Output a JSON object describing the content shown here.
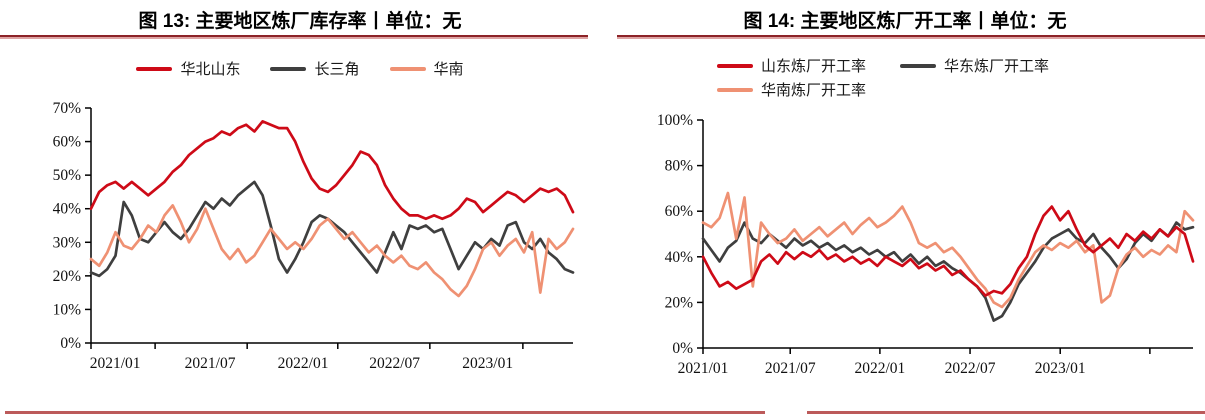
{
  "page": {
    "background": "#ffffff",
    "accent_rule_dark": "#8c2327",
    "accent_rule_light": "#dda3a3",
    "bottom_rule_color": "#bc5a5a"
  },
  "chart_data": [
    {
      "type": "line",
      "title": "图 13: 主要地区炼厂库存率丨单位：无",
      "legend_position": "top-center",
      "grid": false,
      "x_range": [
        "2021/01",
        "2023/06"
      ],
      "x_labels": [
        "2021/01",
        "2021/07",
        "2022/01",
        "2022/07",
        "2023/01"
      ],
      "ylabel": "",
      "ylim": [
        0,
        70
      ],
      "y_step": 10,
      "y_labels": [
        "0%",
        "10%",
        "20%",
        "30%",
        "40%",
        "50%",
        "60%",
        "70%"
      ],
      "series": [
        {
          "name": "华北山东",
          "color": "#ce0a17",
          "values": [
            40,
            45,
            47,
            48,
            46,
            48,
            46,
            44,
            46,
            48,
            51,
            53,
            56,
            58,
            60,
            61,
            63,
            62,
            64,
            65,
            63,
            66,
            65,
            64,
            64,
            60,
            54,
            49,
            46,
            45,
            47,
            50,
            53,
            57,
            56,
            53,
            47,
            43,
            40,
            38,
            38,
            37,
            38,
            37,
            38,
            40,
            43,
            42,
            39,
            41,
            43,
            45,
            44,
            42,
            44,
            46,
            45,
            46,
            44,
            39
          ]
        },
        {
          "name": "长三角",
          "color": "#3f3f3f",
          "values": [
            21,
            20,
            22,
            26,
            42,
            38,
            31,
            30,
            33,
            36,
            33,
            31,
            34,
            38,
            42,
            40,
            43,
            41,
            44,
            46,
            48,
            44,
            35,
            25,
            21,
            25,
            30,
            36,
            38,
            37,
            35,
            33,
            30,
            27,
            24,
            21,
            27,
            33,
            28,
            35,
            34,
            35,
            33,
            34,
            28,
            22,
            26,
            30,
            28,
            31,
            29,
            35,
            36,
            30,
            28,
            31,
            27,
            25,
            22,
            21
          ]
        },
        {
          "name": "华南",
          "color": "#ef9173",
          "values": [
            25,
            23,
            27,
            33,
            29,
            28,
            31,
            35,
            33,
            38,
            41,
            36,
            30,
            34,
            40,
            34,
            28,
            25,
            28,
            24,
            26,
            30,
            34,
            31,
            28,
            30,
            28,
            31,
            35,
            37,
            34,
            31,
            33,
            30,
            27,
            29,
            26,
            24,
            26,
            23,
            22,
            24,
            21,
            19,
            16,
            14,
            17,
            22,
            28,
            30,
            26,
            29,
            31,
            27,
            33,
            15,
            31,
            28,
            30,
            34
          ]
        }
      ]
    },
    {
      "type": "line",
      "title": "图 14: 主要地区炼厂开工率丨单位：无",
      "legend_position": "top-left",
      "grid": false,
      "x_range": [
        "2021/01",
        "2023/07"
      ],
      "x_labels": [
        "2021/01",
        "2021/07",
        "2022/01",
        "2022/07",
        "2023/01"
      ],
      "ylabel": "",
      "ylim": [
        0,
        100
      ],
      "y_step": 20,
      "y_labels": [
        "0%",
        "20%",
        "40%",
        "60%",
        "80%",
        "100%"
      ],
      "series": [
        {
          "name": "山东炼厂开工率",
          "color": "#ce0a17",
          "values": [
            40,
            33,
            27,
            29,
            26,
            28,
            30,
            38,
            41,
            37,
            42,
            39,
            42,
            40,
            43,
            39,
            41,
            38,
            40,
            37,
            39,
            36,
            40,
            38,
            36,
            39,
            35,
            37,
            34,
            36,
            32,
            34,
            30,
            27,
            23,
            25,
            24,
            28,
            35,
            40,
            50,
            58,
            62,
            56,
            60,
            52,
            45,
            42,
            45,
            48,
            44,
            50,
            47,
            51,
            48,
            52,
            49,
            53,
            50,
            38
          ]
        },
        {
          "name": "华东炼厂开工率",
          "color": "#3f3f3f",
          "values": [
            48,
            43,
            38,
            44,
            47,
            55,
            48,
            46,
            50,
            47,
            44,
            48,
            45,
            47,
            44,
            46,
            43,
            45,
            42,
            44,
            41,
            43,
            40,
            42,
            38,
            41,
            37,
            40,
            36,
            38,
            35,
            33,
            30,
            27,
            22,
            12,
            14,
            20,
            28,
            33,
            38,
            44,
            48,
            50,
            52,
            48,
            46,
            50,
            44,
            40,
            35,
            39,
            46,
            50,
            47,
            52,
            49,
            55,
            52,
            53
          ]
        },
        {
          "name": "华南炼厂开工率",
          "color": "#ef9173",
          "values": [
            55,
            53,
            57,
            68,
            48,
            66,
            27,
            55,
            50,
            46,
            48,
            52,
            47,
            50,
            53,
            49,
            52,
            55,
            50,
            54,
            57,
            53,
            55,
            58,
            62,
            55,
            46,
            44,
            46,
            42,
            44,
            40,
            35,
            30,
            26,
            20,
            18,
            22,
            30,
            36,
            42,
            45,
            43,
            46,
            44,
            47,
            42,
            45,
            20,
            23,
            35,
            41,
            44,
            40,
            43,
            41,
            45,
            42,
            60,
            56
          ]
        }
      ]
    }
  ]
}
